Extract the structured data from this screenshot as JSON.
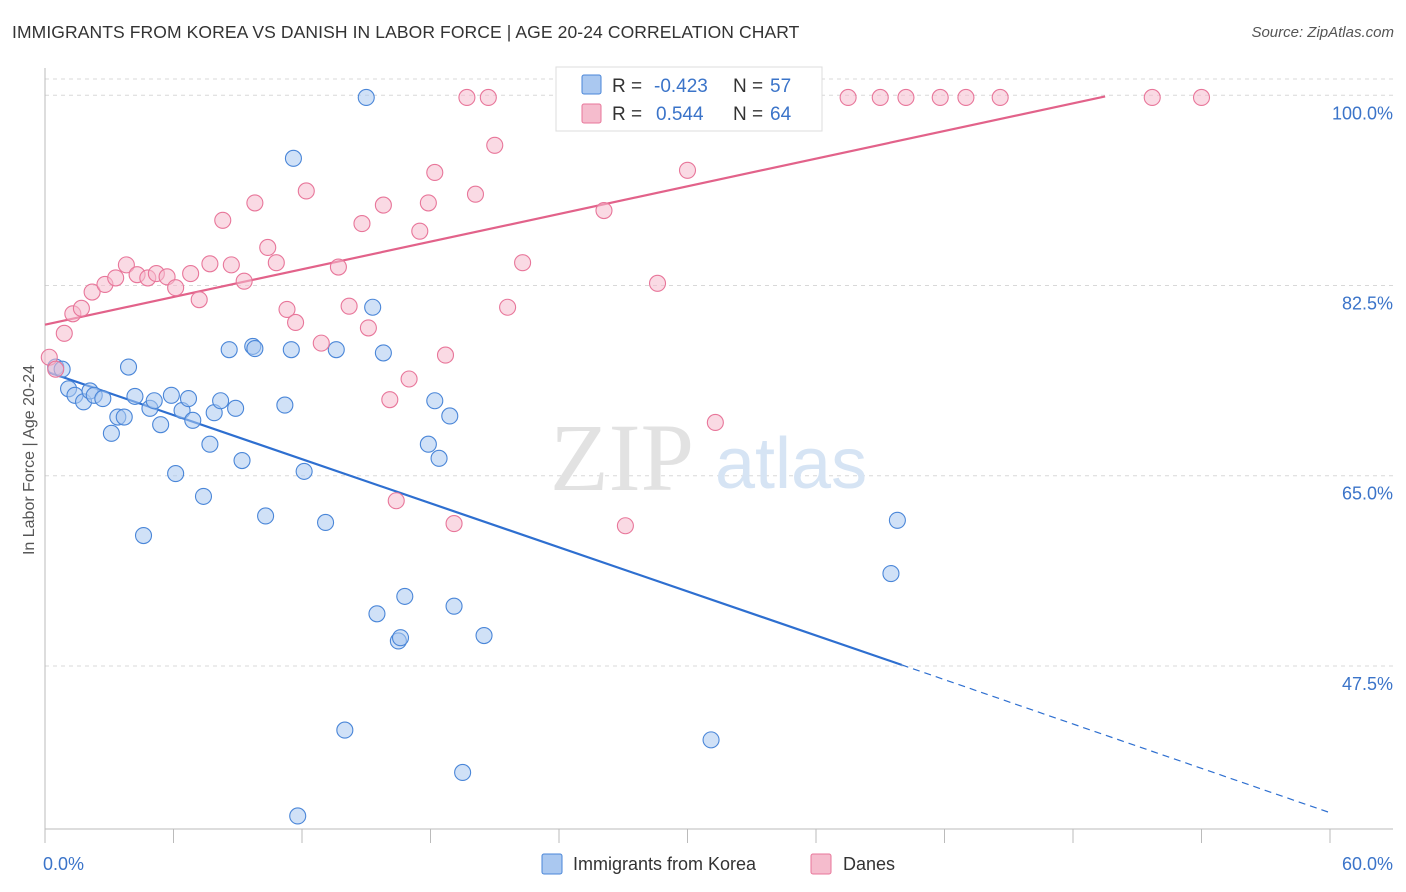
{
  "title": "IMMIGRANTS FROM KOREA VS DANISH IN LABOR FORCE | AGE 20-24 CORRELATION CHART",
  "source": "Source: ZipAtlas.com",
  "watermark": {
    "zip": "ZIP",
    "atlas": "atlas"
  },
  "colors": {
    "blue": "#4a86d8",
    "blue_fill": "#aac8f0",
    "blue_line": "#2e6fd0",
    "pink": "#e8769a",
    "pink_fill": "#f5bccd",
    "pink_line": "#e2628a",
    "axis_text": "#3b74c9",
    "grid": "#d8d8d8"
  },
  "legend_box": {
    "rows": [
      {
        "r_label": "R =",
        "r_value": "-0.423",
        "n_label": "N =",
        "n_value": "57",
        "color": "blue"
      },
      {
        "r_label": "R =",
        "r_value": "0.544",
        "n_label": "N =",
        "n_value": "64",
        "color": "pink"
      }
    ]
  },
  "bottom_legend": [
    {
      "label": "Immigrants from Korea",
      "color": "blue"
    },
    {
      "label": "Danes",
      "color": "pink"
    }
  ],
  "chart_data": {
    "type": "scatter",
    "title": "IMMIGRANTS FROM KOREA VS DANISH IN LABOR FORCE | AGE 20-24 CORRELATION CHART",
    "xlabel": "",
    "ylabel": "In Labor Force | Age 20-24",
    "xlim": [
      0,
      60
    ],
    "ylim": [
      32.5,
      101.5
    ],
    "x_tick_labels": [
      "0.0%",
      "60.0%"
    ],
    "y_ticks": [
      47.5,
      65.0,
      82.5,
      100.0
    ],
    "y_tick_labels": [
      "47.5%",
      "65.0%",
      "82.5%",
      "100.0%"
    ],
    "grid": true,
    "legend_position": "top-center",
    "series": [
      {
        "name": "Immigrants from Korea",
        "color": "blue",
        "trend": {
          "x0": 0.2,
          "y0": 74.5,
          "x1": 40.0,
          "y1": 47.6,
          "dashed_to_x": 60.0,
          "dashed_to_y": 34.0
        },
        "points": [
          [
            0.5,
            75.0
          ],
          [
            0.8,
            74.8
          ],
          [
            1.1,
            73.0
          ],
          [
            1.4,
            72.4
          ],
          [
            1.8,
            71.8
          ],
          [
            2.1,
            72.8
          ],
          [
            2.3,
            72.4
          ],
          [
            2.7,
            72.1
          ],
          [
            3.1,
            68.9
          ],
          [
            3.4,
            70.4
          ],
          [
            3.7,
            70.4
          ],
          [
            3.9,
            75.0
          ],
          [
            4.2,
            72.3
          ],
          [
            4.6,
            59.5
          ],
          [
            4.9,
            71.2
          ],
          [
            5.1,
            71.9
          ],
          [
            5.4,
            69.7
          ],
          [
            5.9,
            72.4
          ],
          [
            6.1,
            65.2
          ],
          [
            6.4,
            71.0
          ],
          [
            6.7,
            72.1
          ],
          [
            6.9,
            70.1
          ],
          [
            7.4,
            63.1
          ],
          [
            7.7,
            67.9
          ],
          [
            7.9,
            70.8
          ],
          [
            8.2,
            71.9
          ],
          [
            8.6,
            76.6
          ],
          [
            8.9,
            71.2
          ],
          [
            9.2,
            66.4
          ],
          [
            9.7,
            76.9
          ],
          [
            9.8,
            76.7
          ],
          [
            10.3,
            61.3
          ],
          [
            11.2,
            71.5
          ],
          [
            11.5,
            76.6
          ],
          [
            11.6,
            94.2
          ],
          [
            11.8,
            33.7
          ],
          [
            12.1,
            65.4
          ],
          [
            13.1,
            60.7
          ],
          [
            13.6,
            76.6
          ],
          [
            14.0,
            41.6
          ],
          [
            15.0,
            99.8
          ],
          [
            15.3,
            80.5
          ],
          [
            15.5,
            52.3
          ],
          [
            15.8,
            76.3
          ],
          [
            16.5,
            49.8
          ],
          [
            16.6,
            50.1
          ],
          [
            16.8,
            53.9
          ],
          [
            17.9,
            67.9
          ],
          [
            18.2,
            71.9
          ],
          [
            18.4,
            66.6
          ],
          [
            18.9,
            70.5
          ],
          [
            19.1,
            53.0
          ],
          [
            19.5,
            37.7
          ],
          [
            20.5,
            50.3
          ],
          [
            31.1,
            40.7
          ],
          [
            39.5,
            56.0
          ],
          [
            39.8,
            60.9
          ]
        ]
      },
      {
        "name": "Danes",
        "color": "pink",
        "trend": {
          "x0": 0.0,
          "y0": 78.9,
          "x1": 49.5,
          "y1": 99.9
        },
        "points": [
          [
            0.2,
            75.9
          ],
          [
            0.5,
            74.8
          ],
          [
            0.9,
            78.1
          ],
          [
            1.3,
            79.9
          ],
          [
            1.7,
            80.4
          ],
          [
            2.2,
            81.9
          ],
          [
            2.8,
            82.6
          ],
          [
            3.3,
            83.2
          ],
          [
            3.8,
            84.4
          ],
          [
            4.3,
            83.5
          ],
          [
            4.8,
            83.2
          ],
          [
            5.2,
            83.6
          ],
          [
            5.7,
            83.3
          ],
          [
            6.1,
            82.3
          ],
          [
            6.8,
            83.6
          ],
          [
            7.2,
            81.2
          ],
          [
            7.7,
            84.5
          ],
          [
            8.3,
            88.5
          ],
          [
            8.7,
            84.4
          ],
          [
            9.3,
            82.9
          ],
          [
            9.8,
            90.1
          ],
          [
            10.4,
            86.0
          ],
          [
            10.8,
            84.6
          ],
          [
            11.3,
            80.3
          ],
          [
            11.7,
            79.1
          ],
          [
            12.2,
            91.2
          ],
          [
            12.9,
            77.2
          ],
          [
            13.7,
            84.2
          ],
          [
            14.2,
            80.6
          ],
          [
            14.8,
            88.2
          ],
          [
            15.1,
            78.6
          ],
          [
            15.8,
            89.9
          ],
          [
            16.1,
            72.0
          ],
          [
            16.4,
            62.7
          ],
          [
            17.0,
            73.9
          ],
          [
            17.5,
            87.5
          ],
          [
            17.9,
            90.1
          ],
          [
            18.2,
            92.9
          ],
          [
            18.7,
            76.1
          ],
          [
            19.1,
            60.6
          ],
          [
            19.7,
            99.8
          ],
          [
            20.1,
            90.9
          ],
          [
            20.7,
            99.8
          ],
          [
            21.0,
            95.4
          ],
          [
            21.6,
            80.5
          ],
          [
            22.3,
            84.6
          ],
          [
            25.3,
            99.8
          ],
          [
            26.1,
            89.4
          ],
          [
            27.1,
            60.4
          ],
          [
            28.0,
            99.8
          ],
          [
            28.6,
            82.7
          ],
          [
            29.6,
            99.8
          ],
          [
            30.0,
            93.1
          ],
          [
            31.3,
            69.9
          ],
          [
            33.2,
            99.8
          ],
          [
            35.3,
            99.8
          ],
          [
            37.5,
            99.8
          ],
          [
            39.0,
            99.8
          ],
          [
            40.2,
            99.8
          ],
          [
            41.8,
            99.8
          ],
          [
            43.0,
            99.8
          ],
          [
            44.6,
            99.8
          ],
          [
            51.7,
            99.8
          ],
          [
            54.0,
            99.8
          ]
        ]
      }
    ]
  }
}
